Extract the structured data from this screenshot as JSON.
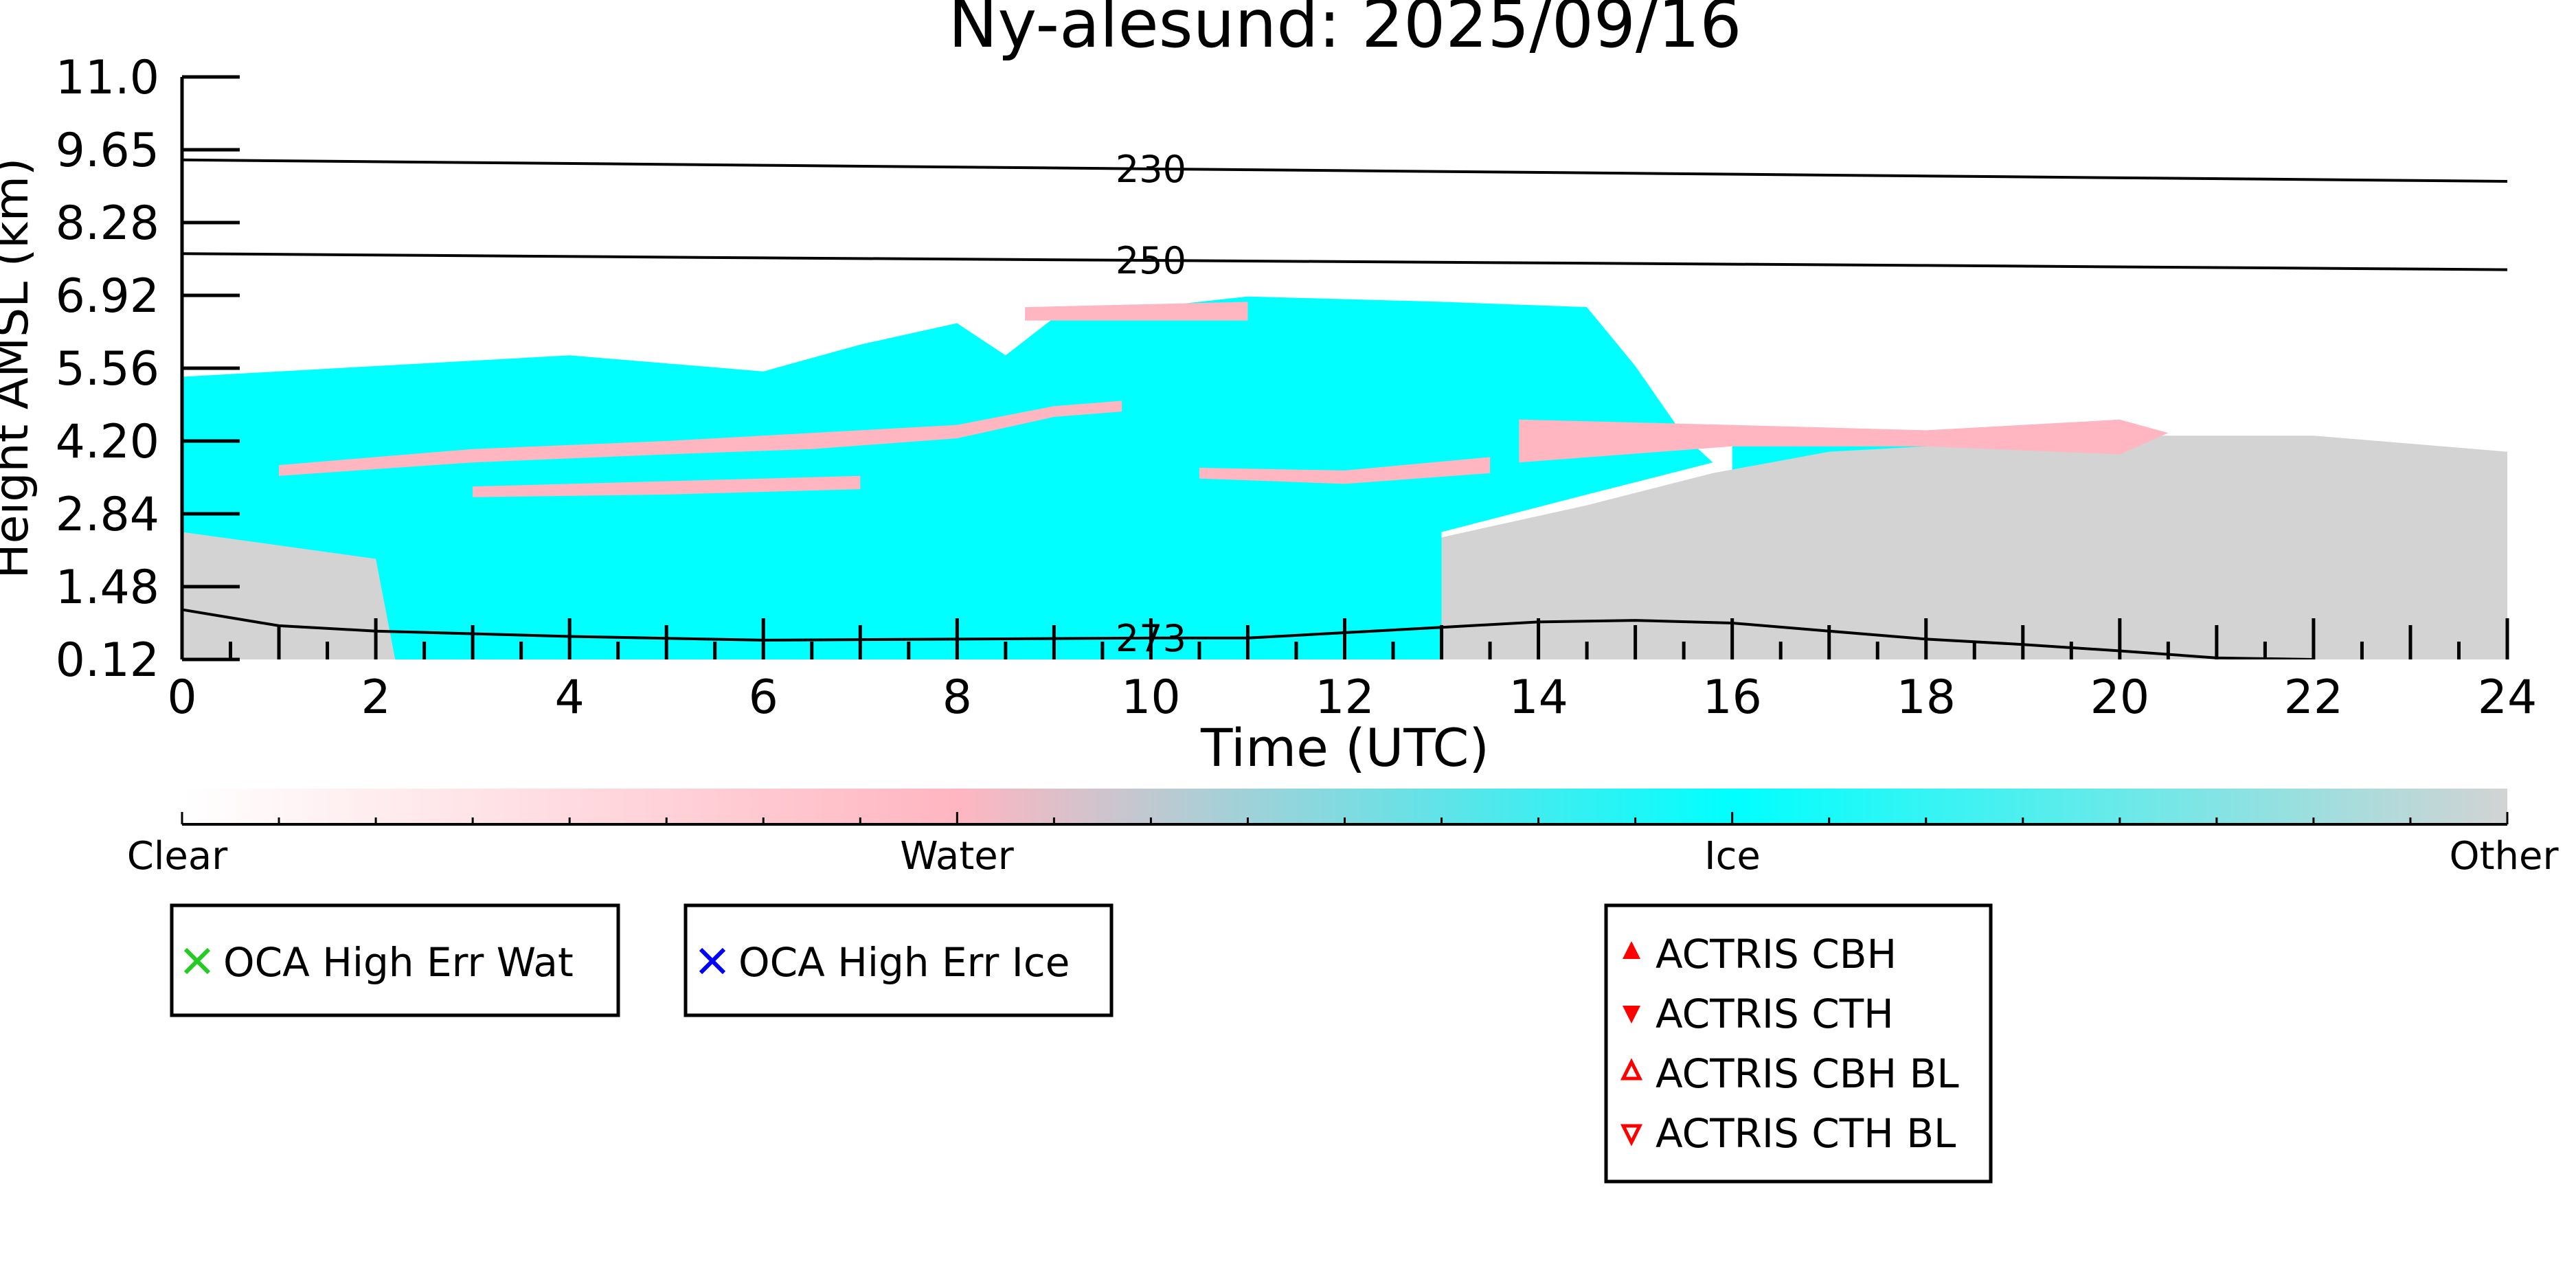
{
  "chart_data": {
    "type": "heatmap",
    "title": "Ny-alesund: 2025/09/16",
    "xlabel": "Time (UTC)",
    "ylabel": "Height AMSL (km)",
    "xlim": [
      0,
      24
    ],
    "ylim": [
      0.12,
      11.0
    ],
    "x_ticks": [
      "0",
      "2",
      "4",
      "6",
      "8",
      "10",
      "12",
      "14",
      "16",
      "18",
      "20",
      "22",
      "24"
    ],
    "y_ticks": [
      "0.12",
      "1.48",
      "2.84",
      "4.20",
      "5.56",
      "6.92",
      "8.28",
      "9.65",
      "11.0"
    ],
    "colors": {
      "clear": "#ffffff",
      "water": "#ffb6c1",
      "ice": "#00ffff",
      "other": "#d3d3d3",
      "contour": "#000000"
    },
    "colorbar": {
      "labels": [
        "Clear",
        "Water",
        "Ice",
        "Other"
      ]
    },
    "temperature_contours": [
      {
        "label": "230",
        "label_x": 10.0,
        "points": [
          [
            0,
            9.45
          ],
          [
            6,
            9.35
          ],
          [
            12,
            9.25
          ],
          [
            18,
            9.15
          ],
          [
            24,
            9.05
          ]
        ]
      },
      {
        "label": "250",
        "label_x": 10.0,
        "points": [
          [
            0,
            7.7
          ],
          [
            6,
            7.62
          ],
          [
            12,
            7.55
          ],
          [
            18,
            7.48
          ],
          [
            24,
            7.4
          ]
        ]
      },
      {
        "label": "273",
        "label_x": 10.0,
        "points": [
          [
            0,
            1.05
          ],
          [
            1,
            0.75
          ],
          [
            2,
            0.65
          ],
          [
            4,
            0.55
          ],
          [
            6,
            0.48
          ],
          [
            8,
            0.5
          ],
          [
            10,
            0.52
          ],
          [
            11,
            0.52
          ],
          [
            12,
            0.62
          ],
          [
            13,
            0.72
          ],
          [
            14,
            0.82
          ],
          [
            15,
            0.85
          ],
          [
            16,
            0.8
          ],
          [
            17,
            0.65
          ],
          [
            18,
            0.5
          ],
          [
            19,
            0.4
          ],
          [
            20,
            0.28
          ],
          [
            21,
            0.15
          ],
          [
            22,
            0.12
          ]
        ]
      }
    ],
    "regions": [
      {
        "class": "ice",
        "polygon": [
          [
            0,
            1.4
          ],
          [
            0,
            5.4
          ],
          [
            2,
            5.6
          ],
          [
            4,
            5.8
          ],
          [
            6,
            5.5
          ],
          [
            7,
            6.0
          ],
          [
            8,
            6.4
          ],
          [
            8.5,
            5.8
          ],
          [
            9,
            6.5
          ],
          [
            11,
            6.9
          ],
          [
            13,
            6.8
          ],
          [
            14.5,
            6.7
          ],
          [
            15,
            5.6
          ],
          [
            15.5,
            4.3
          ],
          [
            15.8,
            3.8
          ],
          [
            14.5,
            3.2
          ],
          [
            13,
            2.5
          ],
          [
            13,
            0.12
          ],
          [
            2.2,
            0.12
          ],
          [
            2,
            1.4
          ]
        ]
      },
      {
        "class": "ice",
        "polygon": [
          [
            16,
            4.2
          ],
          [
            20.5,
            4.2
          ],
          [
            20.3,
            3.4
          ],
          [
            19.5,
            2.5
          ],
          [
            18,
            2.8
          ],
          [
            17,
            3.2
          ],
          [
            16,
            3.6
          ]
        ]
      },
      {
        "class": "other",
        "polygon": [
          [
            0,
            0.12
          ],
          [
            0,
            2.5
          ],
          [
            1.2,
            2.2
          ],
          [
            2,
            2.0
          ],
          [
            2.2,
            0.12
          ]
        ]
      },
      {
        "class": "other",
        "polygon": [
          [
            13,
            0.12
          ],
          [
            13,
            2.4
          ],
          [
            14.5,
            3.0
          ],
          [
            15.8,
            3.6
          ],
          [
            17,
            4.0
          ],
          [
            20,
            4.3
          ],
          [
            22,
            4.3
          ],
          [
            24,
            4.0
          ],
          [
            24,
            0.12
          ]
        ]
      },
      {
        "class": "water",
        "polygon": [
          [
            1,
            3.75
          ],
          [
            3,
            4.05
          ],
          [
            5,
            4.2
          ],
          [
            6.5,
            4.35
          ],
          [
            8,
            4.5
          ],
          [
            9,
            4.85
          ],
          [
            9.7,
            4.95
          ],
          [
            9.7,
            4.75
          ],
          [
            9,
            4.65
          ],
          [
            8,
            4.25
          ],
          [
            6.5,
            4.05
          ],
          [
            5,
            3.95
          ],
          [
            3,
            3.8
          ],
          [
            1,
            3.55
          ]
        ]
      },
      {
        "class": "water",
        "polygon": [
          [
            3,
            3.35
          ],
          [
            5,
            3.45
          ],
          [
            7,
            3.55
          ],
          [
            7,
            3.3
          ],
          [
            5,
            3.2
          ],
          [
            3,
            3.15
          ]
        ]
      },
      {
        "class": "water",
        "polygon": [
          [
            10.5,
            3.7
          ],
          [
            12,
            3.65
          ],
          [
            13.5,
            3.9
          ],
          [
            13.5,
            3.6
          ],
          [
            12,
            3.4
          ],
          [
            10.5,
            3.5
          ]
        ]
      },
      {
        "class": "water",
        "polygon": [
          [
            13.8,
            4.6
          ],
          [
            16,
            4.5
          ],
          [
            18,
            4.4
          ],
          [
            20,
            4.6
          ],
          [
            20.5,
            4.35
          ],
          [
            20,
            3.95
          ],
          [
            18,
            4.1
          ],
          [
            16,
            4.1
          ],
          [
            13.8,
            3.8
          ]
        ]
      },
      {
        "class": "water",
        "polygon": [
          [
            8.7,
            6.7
          ],
          [
            11,
            6.8
          ],
          [
            11,
            6.45
          ],
          [
            8.7,
            6.45
          ]
        ]
      }
    ],
    "legends": [
      {
        "items": [
          {
            "label": "OCA High Err Wat",
            "marker": "x",
            "color": "#22cc22"
          }
        ]
      },
      {
        "items": [
          {
            "label": "OCA High Err Ice",
            "marker": "x",
            "color": "#0000ff"
          }
        ]
      },
      {
        "items": [
          {
            "label": "ACTRIS CBH",
            "marker": "triangle-up",
            "color": "#ff0000"
          },
          {
            "label": "ACTRIS CTH",
            "marker": "triangle-down",
            "color": "#ff0000"
          },
          {
            "label": "ACTRIS CBH BL",
            "marker": "triangle-up-open",
            "color": "#ff0000"
          },
          {
            "label": "ACTRIS CTH BL",
            "marker": "triangle-down-open",
            "color": "#ff0000"
          }
        ]
      }
    ]
  }
}
